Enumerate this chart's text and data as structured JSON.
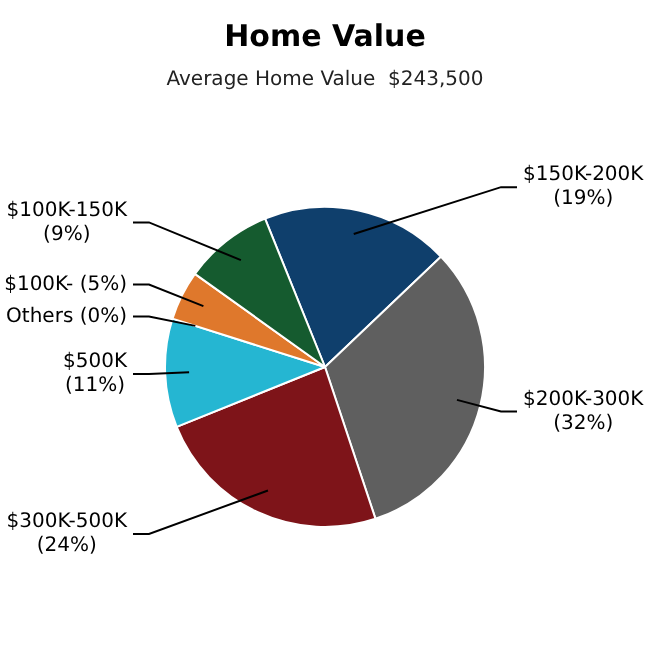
{
  "chart_data": {
    "type": "pie",
    "title": "Home Value",
    "subtitle": "Average Home Value  $243,500",
    "categories": [
      "$150K-200K",
      "$200K-300K",
      "$300K-500K",
      "$500K",
      "Others",
      "$100K-",
      "$100K-150K"
    ],
    "values": [
      19,
      32,
      24,
      11,
      0,
      5,
      9
    ],
    "value_labels": [
      "(19%)",
      "(32%)",
      "(24%)",
      "(11%)",
      "(0%)",
      "(5%)",
      "(9%)"
    ],
    "colors": [
      "#0f3f6c",
      "#5f5f5f",
      "#7e1419",
      "#25b6d2",
      "#9a9a9a",
      "#df782c",
      "#155b2f"
    ]
  }
}
